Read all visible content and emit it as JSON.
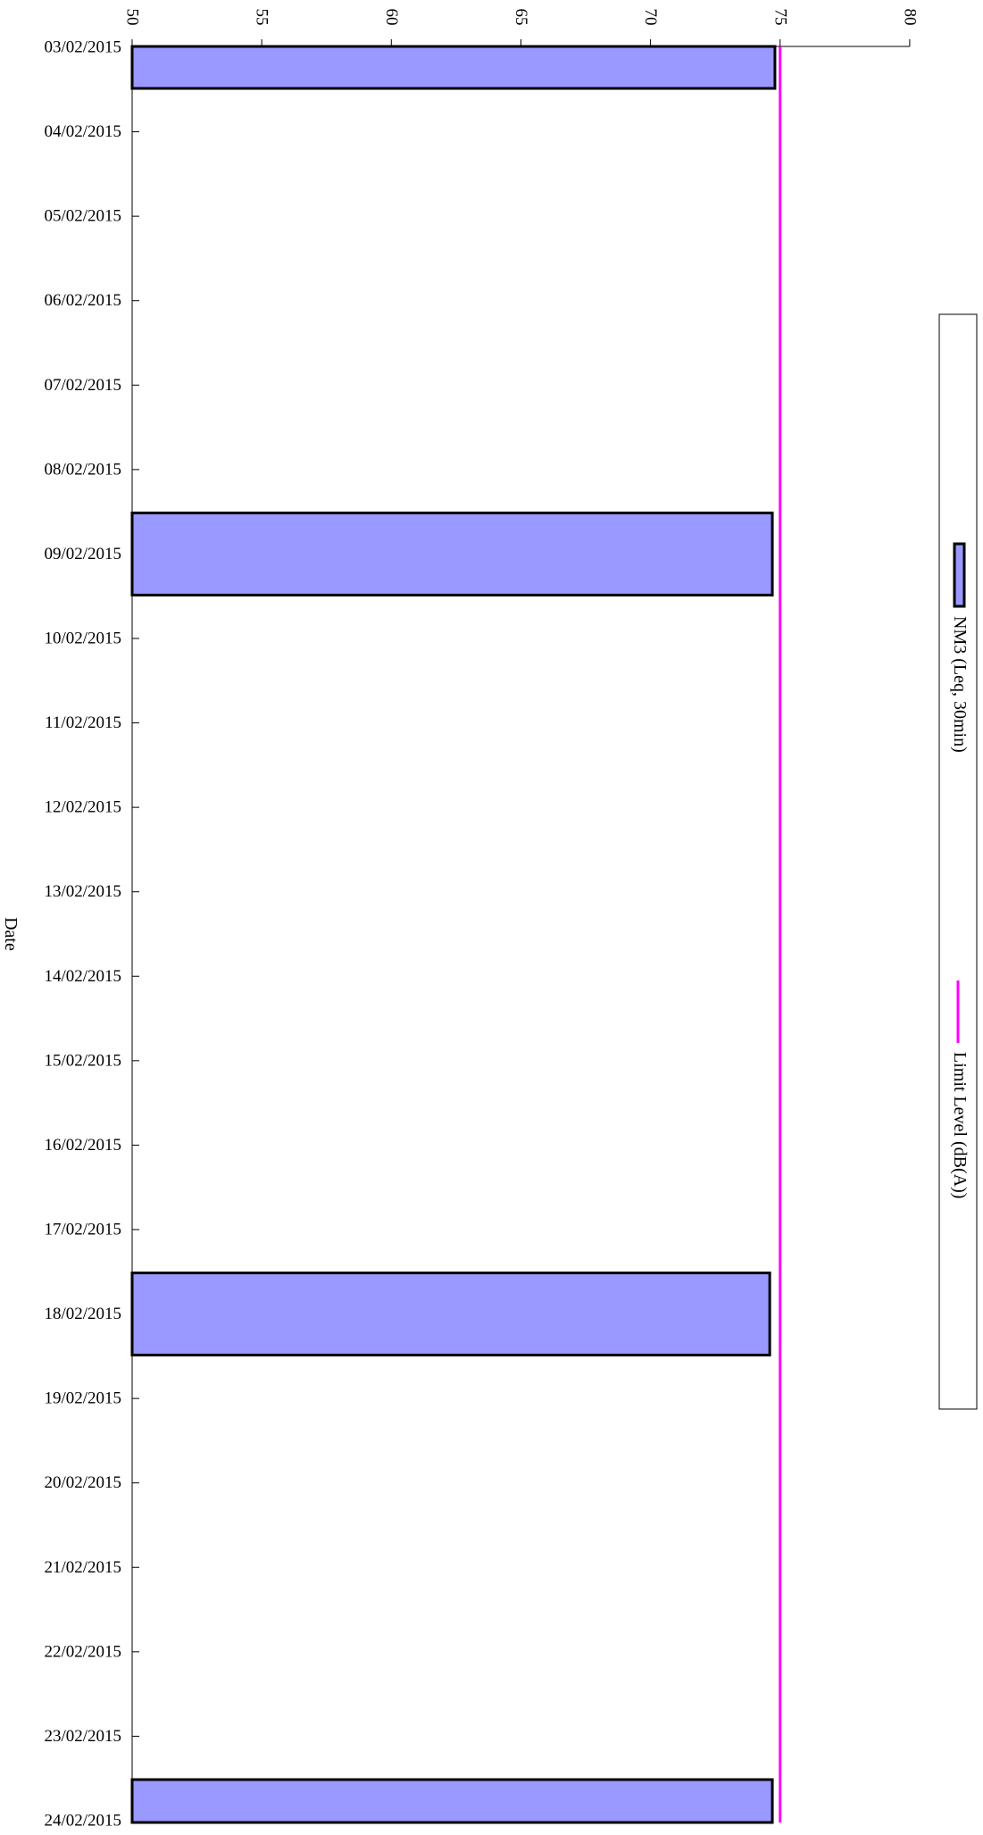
{
  "chart_data": {
    "type": "bar",
    "orientation": "horizontal",
    "categories": [
      "03/02/2015",
      "04/02/2015",
      "05/02/2015",
      "06/02/2015",
      "07/02/2015",
      "08/02/2015",
      "09/02/2015",
      "10/02/2015",
      "11/02/2015",
      "12/02/2015",
      "13/02/2015",
      "14/02/2015",
      "15/02/2015",
      "16/02/2015",
      "17/02/2015",
      "18/02/2015",
      "19/02/2015",
      "20/02/2015",
      "21/02/2015",
      "22/02/2015",
      "23/02/2015",
      "24/02/2015"
    ],
    "series": [
      {
        "name": "NM3 (Leq, 30min)",
        "type": "bar",
        "color": "#9999ff",
        "values": [
          74.8,
          null,
          null,
          null,
          null,
          null,
          74.7,
          null,
          null,
          null,
          null,
          null,
          null,
          null,
          null,
          74.6,
          null,
          null,
          null,
          null,
          null,
          74.7
        ]
      },
      {
        "name": "Limit Level (dB(A))",
        "type": "line",
        "color": "#ff00ff",
        "values": [
          75,
          75,
          75,
          75,
          75,
          75,
          75,
          75,
          75,
          75,
          75,
          75,
          75,
          75,
          75,
          75,
          75,
          75,
          75,
          75,
          75,
          75
        ]
      }
    ],
    "category_axis_label": "Date",
    "value_axis": {
      "min": 50,
      "max": 80,
      "ticks": [
        "50",
        "55",
        "60",
        "65",
        "70",
        "75",
        "80"
      ]
    },
    "grid": false,
    "legend_position": "right",
    "rotated_clockwise_90": true
  }
}
